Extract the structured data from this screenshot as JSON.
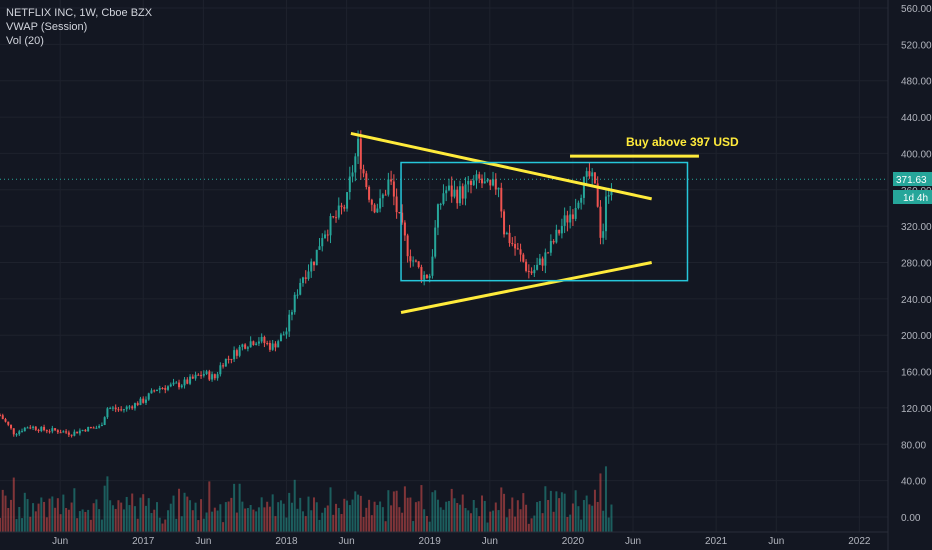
{
  "header": {
    "symbol_line": "NETFLIX INC, 1W, Cboe BZX",
    "indicator_1": "VWAP (Session)",
    "indicator_2": "Vol (20)"
  },
  "price_badge": {
    "value": "371.63",
    "countdown": "1d 4h"
  },
  "annotation": {
    "text": "Buy above 397 USD"
  },
  "colors": {
    "background": "#131722",
    "grid": "#1e222d",
    "up": "#26a69a",
    "down": "#ef5350",
    "drawing_line": "#ffeb3b",
    "box": "#26c6da",
    "axis_text": "#b2b5be"
  },
  "chart_data": {
    "type": "candlestick",
    "title": "NETFLIX INC, 1W, Cboe BZX",
    "y_ticks": [
      0,
      40,
      80,
      120,
      160,
      200,
      240,
      280,
      320,
      360,
      400,
      440,
      480,
      520,
      560
    ],
    "y_tick_labels": [
      "0.00",
      "40.00",
      "80.00",
      "120.00",
      "160.00",
      "200.00",
      "240.00",
      "280.00",
      "320.00",
      "360.00",
      "400.00",
      "440.00",
      "480.00",
      "520.00",
      "560.00"
    ],
    "ylim": [
      0,
      560
    ],
    "x_ticks": [
      {
        "label": "Jun",
        "t": 2016.42
      },
      {
        "label": "2017",
        "t": 2017.0
      },
      {
        "label": "Jun",
        "t": 2017.42
      },
      {
        "label": "2018",
        "t": 2018.0
      },
      {
        "label": "Jun",
        "t": 2018.42
      },
      {
        "label": "2019",
        "t": 2019.0
      },
      {
        "label": "Jun",
        "t": 2019.42
      },
      {
        "label": "2020",
        "t": 2020.0
      },
      {
        "label": "Jun",
        "t": 2020.42
      },
      {
        "label": "2021",
        "t": 2021.0
      },
      {
        "label": "Jun",
        "t": 2021.42
      },
      {
        "label": "2022",
        "t": 2022.0
      }
    ],
    "xlim": [
      2016.0,
      2022.2
    ],
    "price_path": [
      [
        2016.0,
        112
      ],
      [
        2016.1,
        92
      ],
      [
        2016.2,
        100
      ],
      [
        2016.3,
        96
      ],
      [
        2016.4,
        95
      ],
      [
        2016.5,
        92
      ],
      [
        2016.6,
        97
      ],
      [
        2016.7,
        99
      ],
      [
        2016.75,
        120
      ],
      [
        2016.85,
        118
      ],
      [
        2017.0,
        128
      ],
      [
        2017.1,
        142
      ],
      [
        2017.2,
        144
      ],
      [
        2017.3,
        148
      ],
      [
        2017.42,
        158
      ],
      [
        2017.5,
        153
      ],
      [
        2017.55,
        170
      ],
      [
        2017.6,
        175
      ],
      [
        2017.65,
        182
      ],
      [
        2017.7,
        190
      ],
      [
        2017.8,
        196
      ],
      [
        2017.9,
        187
      ],
      [
        2018.0,
        205
      ],
      [
        2018.05,
        235
      ],
      [
        2018.1,
        262
      ],
      [
        2018.2,
        285
      ],
      [
        2018.25,
        312
      ],
      [
        2018.35,
        330
      ],
      [
        2018.42,
        345
      ],
      [
        2018.45,
        375
      ],
      [
        2018.5,
        408
      ],
      [
        2018.55,
        370
      ],
      [
        2018.6,
        345
      ],
      [
        2018.65,
        342
      ],
      [
        2018.72,
        372
      ],
      [
        2018.78,
        330
      ],
      [
        2018.85,
        292
      ],
      [
        2018.95,
        265
      ],
      [
        2019.0,
        267
      ],
      [
        2019.05,
        330
      ],
      [
        2019.1,
        360
      ],
      [
        2019.2,
        355
      ],
      [
        2019.3,
        365
      ],
      [
        2019.35,
        370
      ],
      [
        2019.42,
        358
      ],
      [
        2019.48,
        368
      ],
      [
        2019.52,
        315
      ],
      [
        2019.6,
        295
      ],
      [
        2019.7,
        268
      ],
      [
        2019.75,
        275
      ],
      [
        2019.8,
        285
      ],
      [
        2019.85,
        298
      ],
      [
        2019.92,
        320
      ],
      [
        2020.0,
        338
      ],
      [
        2020.05,
        360
      ],
      [
        2020.12,
        375
      ],
      [
        2020.17,
        352
      ],
      [
        2020.2,
        300
      ],
      [
        2020.24,
        360
      ],
      [
        2020.28,
        372
      ]
    ],
    "volume_ylim": [
      0,
      160
    ],
    "drawings": {
      "upper_trendline": [
        [
          2018.45,
          422
        ],
        [
          2020.55,
          350
        ]
      ],
      "lower_trendline": [
        [
          2018.8,
          225
        ],
        [
          2020.55,
          280
        ]
      ],
      "box": {
        "t0": 2018.8,
        "t1": 2020.8,
        "p0": 260,
        "p1": 390
      },
      "buy_line": {
        "t0": 2019.98,
        "t1": 2020.88,
        "p": 397
      },
      "last_price": 371.63
    }
  }
}
